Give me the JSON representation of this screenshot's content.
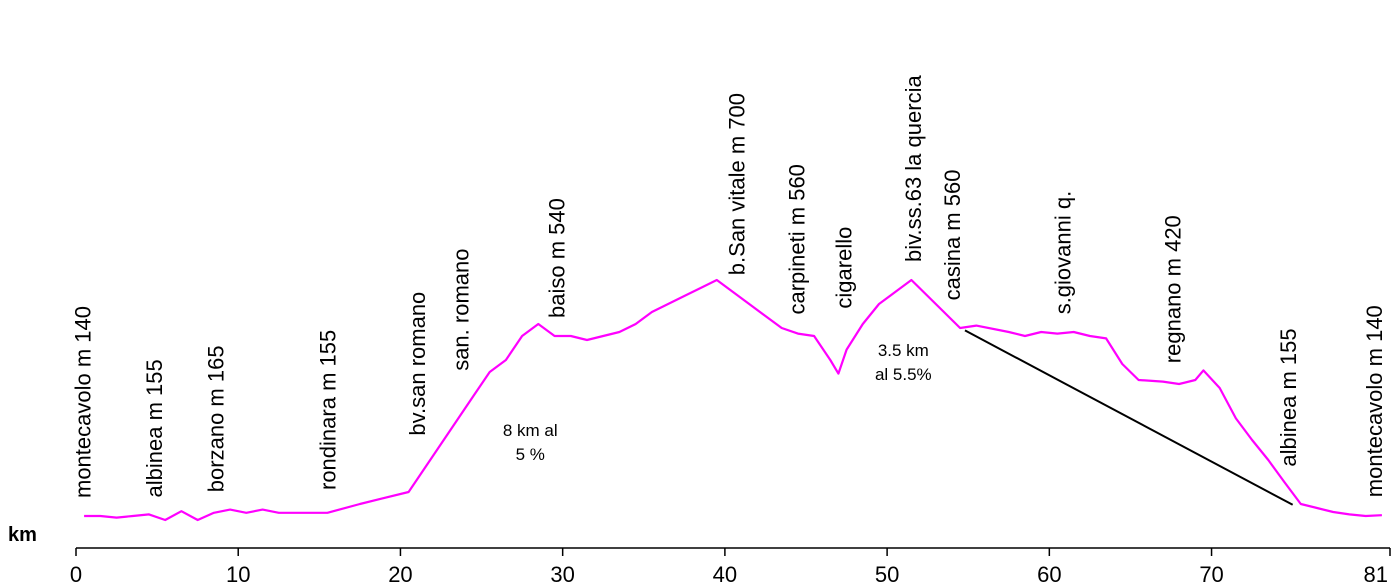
{
  "chart_data": {
    "type": "line",
    "xlabel": "km",
    "xlim": [
      0,
      81
    ],
    "x_ticks": [
      0,
      10,
      20,
      30,
      40,
      50,
      60,
      70,
      81
    ],
    "series": [
      {
        "color": "#ff00ff",
        "points": [
          [
            0.5,
            140
          ],
          [
            1.5,
            140
          ],
          [
            2.5,
            138
          ],
          [
            3.5,
            140
          ],
          [
            4.5,
            142
          ],
          [
            5.5,
            135
          ],
          [
            6.5,
            146
          ],
          [
            7.5,
            135
          ],
          [
            8.5,
            144
          ],
          [
            9.5,
            148
          ],
          [
            10.5,
            144
          ],
          [
            11.5,
            148
          ],
          [
            12.5,
            144
          ],
          [
            13.5,
            144
          ],
          [
            14.5,
            144
          ],
          [
            15.5,
            144
          ],
          [
            17.5,
            155
          ],
          [
            20.5,
            170
          ],
          [
            21.5,
            200
          ],
          [
            22.5,
            230
          ],
          [
            23.5,
            260
          ],
          [
            24.5,
            290
          ],
          [
            25.5,
            320
          ],
          [
            26.5,
            335
          ],
          [
            27.5,
            365
          ],
          [
            28.5,
            380
          ],
          [
            29.5,
            365
          ],
          [
            30.5,
            365
          ],
          [
            31.5,
            360
          ],
          [
            32.5,
            365
          ],
          [
            33.5,
            370
          ],
          [
            34.5,
            380
          ],
          [
            35.5,
            395
          ],
          [
            36.5,
            405
          ],
          [
            37.5,
            415
          ],
          [
            38.5,
            425
          ],
          [
            39.5,
            435
          ],
          [
            40.5,
            420
          ],
          [
            41.5,
            405
          ],
          [
            42.5,
            390
          ],
          [
            43.5,
            375
          ],
          [
            44.5,
            368
          ],
          [
            45.5,
            365
          ],
          [
            46.5,
            335
          ],
          [
            47.0,
            318
          ],
          [
            47.5,
            348
          ],
          [
            48.5,
            380
          ],
          [
            49.5,
            405
          ],
          [
            50.5,
            420
          ],
          [
            51.5,
            435
          ],
          [
            53.5,
            395
          ],
          [
            54.5,
            375
          ],
          [
            55.5,
            378
          ],
          [
            57.5,
            370
          ],
          [
            58.5,
            365
          ],
          [
            59.5,
            370
          ],
          [
            60.5,
            368
          ],
          [
            61.5,
            370
          ],
          [
            62.5,
            365
          ],
          [
            63.5,
            362
          ],
          [
            64.5,
            330
          ],
          [
            65.5,
            310
          ],
          [
            67.0,
            308
          ],
          [
            68.0,
            305
          ],
          [
            69.0,
            310
          ],
          [
            69.5,
            322
          ],
          [
            70.5,
            300
          ],
          [
            71.5,
            262
          ],
          [
            72.5,
            235
          ],
          [
            73.5,
            210
          ],
          [
            74.5,
            182
          ],
          [
            75.5,
            155
          ],
          [
            76.5,
            150
          ],
          [
            77.5,
            145
          ],
          [
            78.5,
            142
          ],
          [
            79.5,
            140
          ],
          [
            80.5,
            141
          ]
        ]
      }
    ],
    "trend_line": {
      "from": [
        54.8,
        372
      ],
      "to": [
        75.0,
        154
      ],
      "color": "#000000"
    },
    "waypoints": [
      {
        "x": 0.9,
        "label": "montecavolo m 140"
      },
      {
        "x": 5.3,
        "label": "albinea m 155"
      },
      {
        "x": 9.1,
        "label": "borzano m 165"
      },
      {
        "x": 16.0,
        "label": "rondinara m 155"
      },
      {
        "x": 21.5,
        "label": "bv.san romano"
      },
      {
        "x": 24.2,
        "label": "san. romano"
      },
      {
        "x": 30.1,
        "label": "baiso m 540"
      },
      {
        "x": 41.2,
        "label": "b.San vitale m 700"
      },
      {
        "x": 44.9,
        "label": "carpineti m 560"
      },
      {
        "x": 47.8,
        "label": "cigarello"
      },
      {
        "x": 52.1,
        "label": "biv.ss.63 la quercia"
      },
      {
        "x": 54.5,
        "label": "casina m 560"
      },
      {
        "x": 61.3,
        "label": "s.giovanni q."
      },
      {
        "x": 68.1,
        "label": "regnano m 420"
      },
      {
        "x": 75.2,
        "label": "albinea m 155"
      },
      {
        "x": 80.5,
        "label": "montecavolo m 140"
      }
    ],
    "annotations": [
      {
        "lines": [
          "8 km al",
          "5 %"
        ],
        "x": 28.0,
        "y": 240
      },
      {
        "lines": [
          "3.5 km",
          "al 5.5%"
        ],
        "x": 51.0,
        "y": 340
      }
    ]
  }
}
